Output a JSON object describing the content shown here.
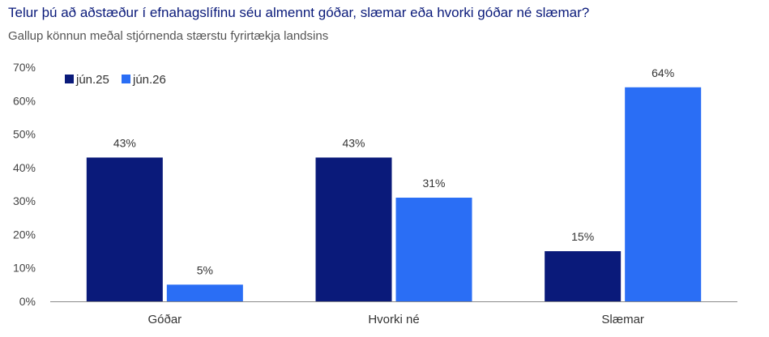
{
  "header": {
    "title": "Telur þú að aðstæður í efnahagslífinu séu almennt góðar, slæmar eða hvorki góðar né slæmar?",
    "subtitle": "Gallup könnun meðal stjórnenda stærstu fyrirtækja landsins"
  },
  "chart_data": {
    "type": "bar",
    "categories": [
      "Góðar",
      "Hvorki né",
      "Slæmar"
    ],
    "series": [
      {
        "name": "jún.25",
        "values": [
          43,
          43,
          15
        ],
        "color": "#0a1a7a"
      },
      {
        "name": "jún.26",
        "values": [
          5,
          31,
          64
        ],
        "color": "#2a6ef5"
      }
    ],
    "value_suffix": "%",
    "ylim": [
      0,
      70
    ],
    "yticks": [
      0,
      10,
      20,
      30,
      40,
      50,
      60,
      70
    ],
    "ytick_labels": [
      "0%",
      "10%",
      "20%",
      "30%",
      "40%",
      "50%",
      "60%",
      "70%"
    ],
    "grid": false,
    "legend_position": "top-left"
  }
}
